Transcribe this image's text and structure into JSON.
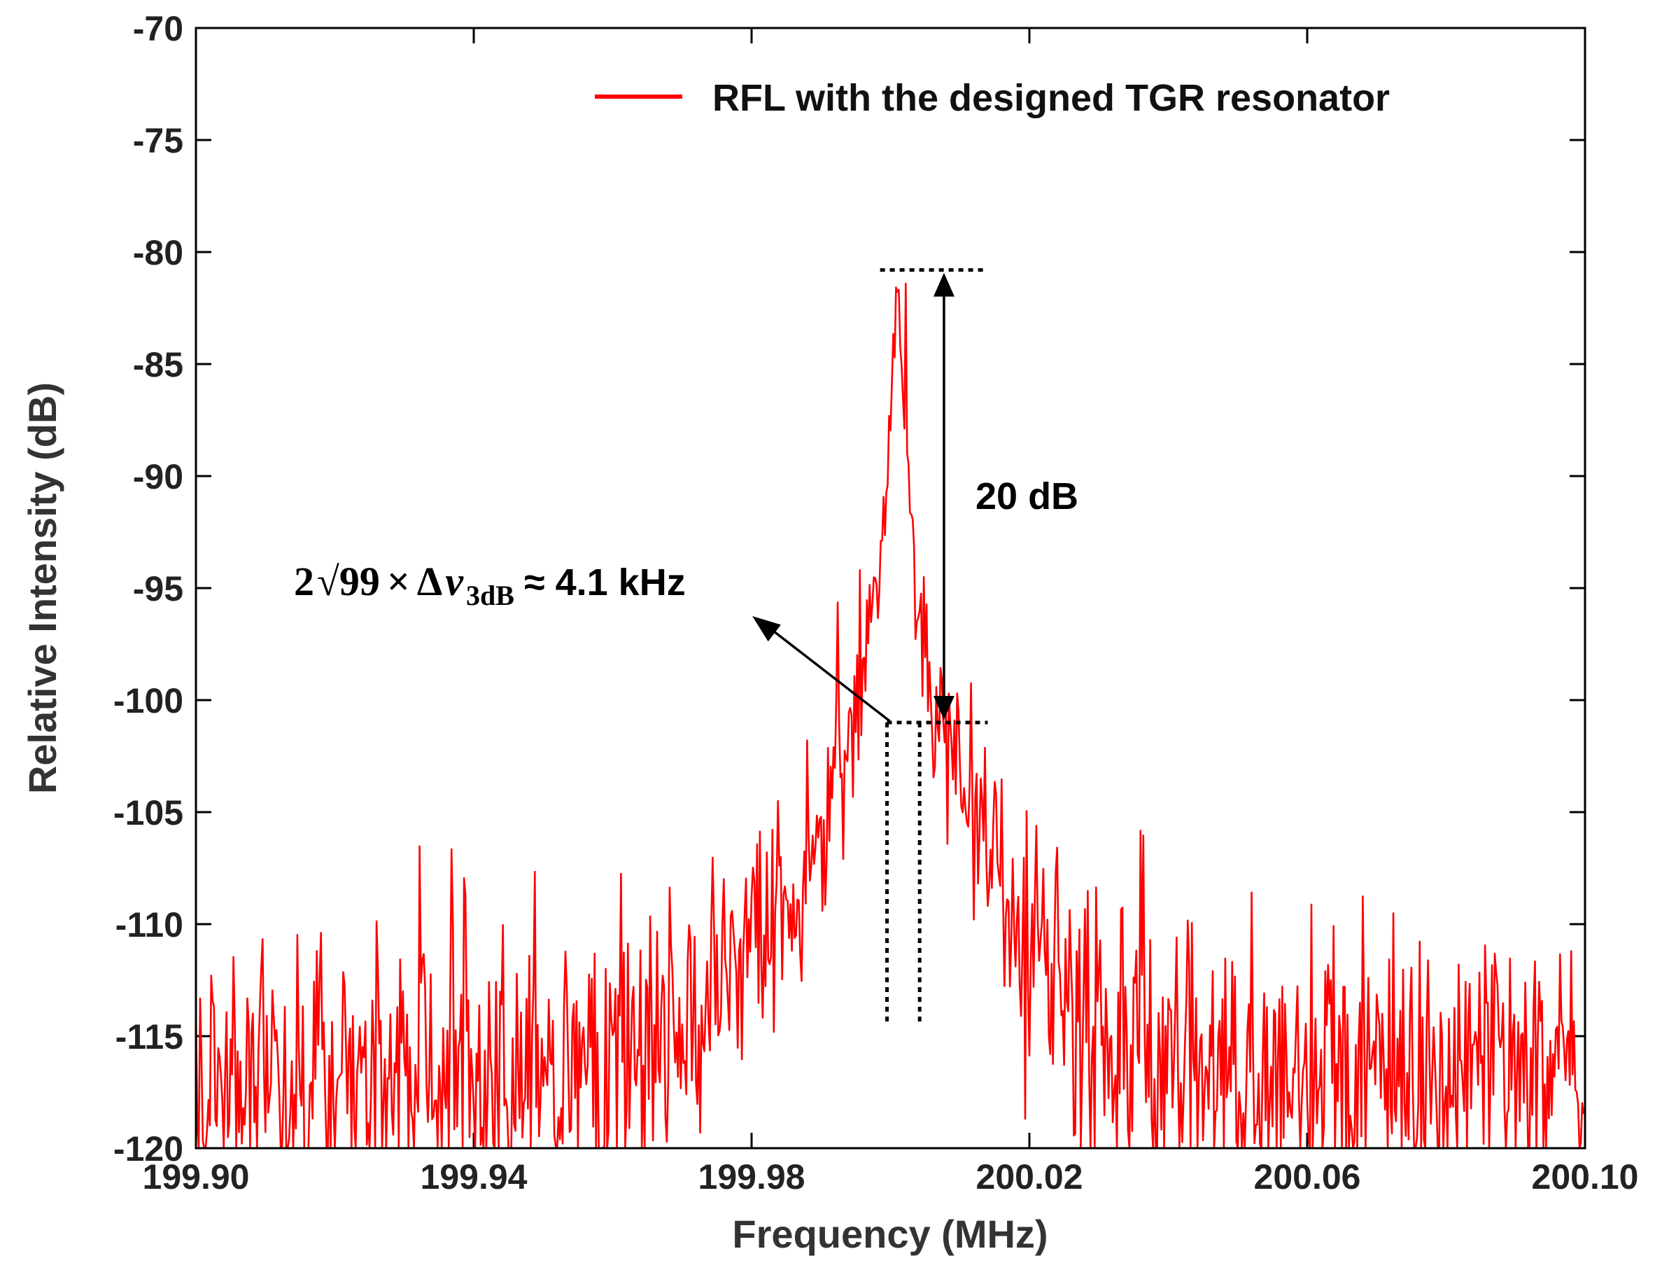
{
  "chart_data": {
    "type": "line",
    "title": "",
    "xlabel": "Frequency (MHz)",
    "ylabel": "Relative Intensity (dB)",
    "xlim": [
      199.9,
      200.1
    ],
    "ylim": [
      -120,
      -70
    ],
    "x_ticks": [
      "199.90",
      "199.94",
      "199.98",
      "200.02",
      "200.06",
      "200.10"
    ],
    "x_tick_values": [
      199.9,
      199.94,
      199.98,
      200.02,
      200.06,
      200.1
    ],
    "y_ticks": [
      "-70",
      "-75",
      "-80",
      "-85",
      "-90",
      "-95",
      "-100",
      "-105",
      "-110",
      "-115",
      "-120"
    ],
    "y_tick_values": [
      -70,
      -75,
      -80,
      -85,
      -90,
      -95,
      -100,
      -105,
      -110,
      -115,
      -120
    ],
    "grid": false,
    "legend_position": "top-right",
    "series": [
      {
        "name": "RFL with the designed TGR resonator",
        "color": "#ff0000",
        "model": {
          "center_mhz": 200.001,
          "peak_db": -81.2,
          "noise_floor_db": -116.8,
          "clip_min_db": -120,
          "x_step_mhz": 0.0002,
          "noise_amplitude_db": 4.2
        }
      }
    ],
    "annotations": {
      "level_top_db": -80.8,
      "level_bottom_db": -101.0,
      "width_left_mhz": 199.9995,
      "width_right_mhz": 200.0042,
      "width_bottom_db": -114.5,
      "span_label": "20 dB",
      "arrow_x_mhz": 200.0077,
      "width_formula": {
        "prefix": "2",
        "root": "√99",
        "times": "×",
        "delta": "Δ",
        "nu": "v",
        "subscript": "3dB",
        "suffix": "≈ 4.1 kHz"
      }
    }
  }
}
